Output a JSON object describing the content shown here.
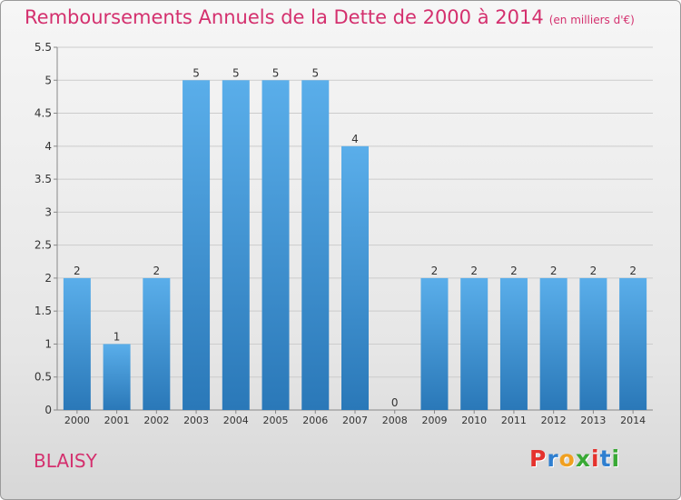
{
  "title": "Remboursements Annuels de la Dette de 2000 à 2014",
  "title_unit": "(en milliers d'€)",
  "commune": "BLAISY",
  "brand": {
    "letters": [
      "P",
      "r",
      "o",
      "x",
      "i",
      "t",
      "i"
    ],
    "colors": [
      "#e5322d",
      "#2f7fd0",
      "#f0a020",
      "#39a935",
      "#e5322d",
      "#2f7fd0",
      "#39a935"
    ]
  },
  "colors": {
    "title": "#d4306e",
    "bar_top": "#5aaeea",
    "bar_bottom": "#2a78b8",
    "grid": "#cccccc",
    "axis_text": "#333333"
  },
  "chart_data": {
    "type": "bar",
    "categories": [
      "2000",
      "2001",
      "2002",
      "2003",
      "2004",
      "2005",
      "2006",
      "2007",
      "2008",
      "2009",
      "2010",
      "2011",
      "2012",
      "2013",
      "2014"
    ],
    "values": [
      2,
      1,
      2,
      5,
      5,
      5,
      5,
      4,
      0,
      2,
      2,
      2,
      2,
      2,
      2
    ],
    "data_labels": [
      "2",
      "1",
      "2",
      "5",
      "5",
      "5",
      "5",
      "4",
      "0",
      "2",
      "2",
      "2",
      "2",
      "2",
      "2"
    ],
    "title": "Remboursements Annuels de la Dette de 2000 à 2014",
    "xlabel": "",
    "ylabel": "",
    "ylim": [
      0,
      5.5
    ],
    "yticks": [
      "0",
      "0.5",
      "1",
      "1.5",
      "2",
      "2.5",
      "3",
      "3.5",
      "4",
      "4.5",
      "5",
      "5.5"
    ],
    "grid": true,
    "legend": "none"
  }
}
